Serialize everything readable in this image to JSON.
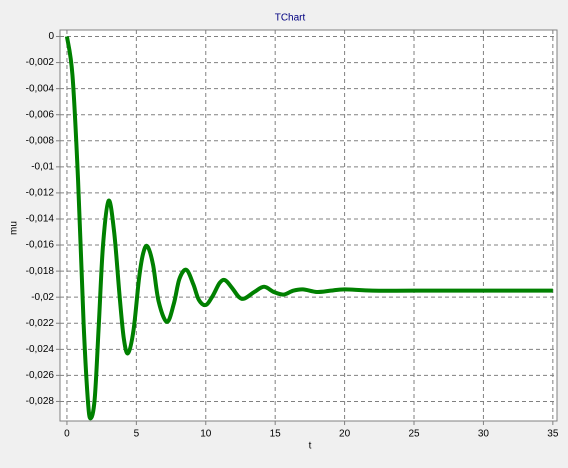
{
  "chart_data": {
    "type": "line",
    "title": "TChart",
    "x_label": "t",
    "y_label": "mu",
    "color": "#008000",
    "xlim": [
      -0.5,
      35.3
    ],
    "ylim": [
      -0.0295,
      0.0005
    ],
    "xticks": [
      0,
      5,
      10,
      15,
      20,
      25,
      30,
      35
    ],
    "yticks": [
      0,
      {
        "value": -0.002,
        "label": "-0,002"
      },
      {
        "value": -0.004,
        "label": "-0,004"
      },
      {
        "value": -0.006,
        "label": "-0,006"
      },
      {
        "value": -0.008,
        "label": "-0,008"
      },
      {
        "value": -0.01,
        "label": "-0,01"
      },
      {
        "value": -0.012,
        "label": "-0,012"
      },
      {
        "value": -0.014,
        "label": "-0,014"
      },
      {
        "value": -0.016,
        "label": "-0,016"
      },
      {
        "value": -0.018,
        "label": "-0,018"
      },
      {
        "value": -0.02,
        "label": "-0,02"
      },
      {
        "value": -0.022,
        "label": "-0,022"
      },
      {
        "value": -0.024,
        "label": "-0,024"
      },
      {
        "value": -0.026,
        "label": "-0,026"
      },
      {
        "value": -0.028,
        "label": "-0,028"
      }
    ],
    "grid": true,
    "x": [
      0,
      0.4,
      0.8,
      1.2,
      1.5,
      1.7,
      2.0,
      2.3,
      2.6,
      3.0,
      3.4,
      3.8,
      4.1,
      4.4,
      4.8,
      5.2,
      5.5,
      5.8,
      6.2,
      6.6,
      7.2,
      7.7,
      8.1,
      8.6,
      9.1,
      9.5,
      10.0,
      10.5,
      11.0,
      11.4,
      11.9,
      12.4,
      12.8,
      13.5,
      14.2,
      14.9,
      15.6,
      16.3,
      17.0,
      18,
      19,
      20,
      22,
      25,
      30,
      35
    ],
    "values": [
      0,
      -0.003,
      -0.011,
      -0.022,
      -0.0278,
      -0.0293,
      -0.0278,
      -0.022,
      -0.016,
      -0.0126,
      -0.015,
      -0.02,
      -0.0232,
      -0.0243,
      -0.0225,
      -0.0185,
      -0.0166,
      -0.0161,
      -0.0175,
      -0.0203,
      -0.0219,
      -0.0205,
      -0.0186,
      -0.0179,
      -0.019,
      -0.0202,
      -0.0206,
      -0.0199,
      -0.0189,
      -0.0187,
      -0.0193,
      -0.02,
      -0.0201,
      -0.0196,
      -0.0192,
      -0.0196,
      -0.0198,
      -0.0195,
      -0.0194,
      -0.0196,
      -0.0195,
      -0.0194,
      -0.0195,
      -0.0195,
      -0.0195,
      -0.0195
    ]
  }
}
